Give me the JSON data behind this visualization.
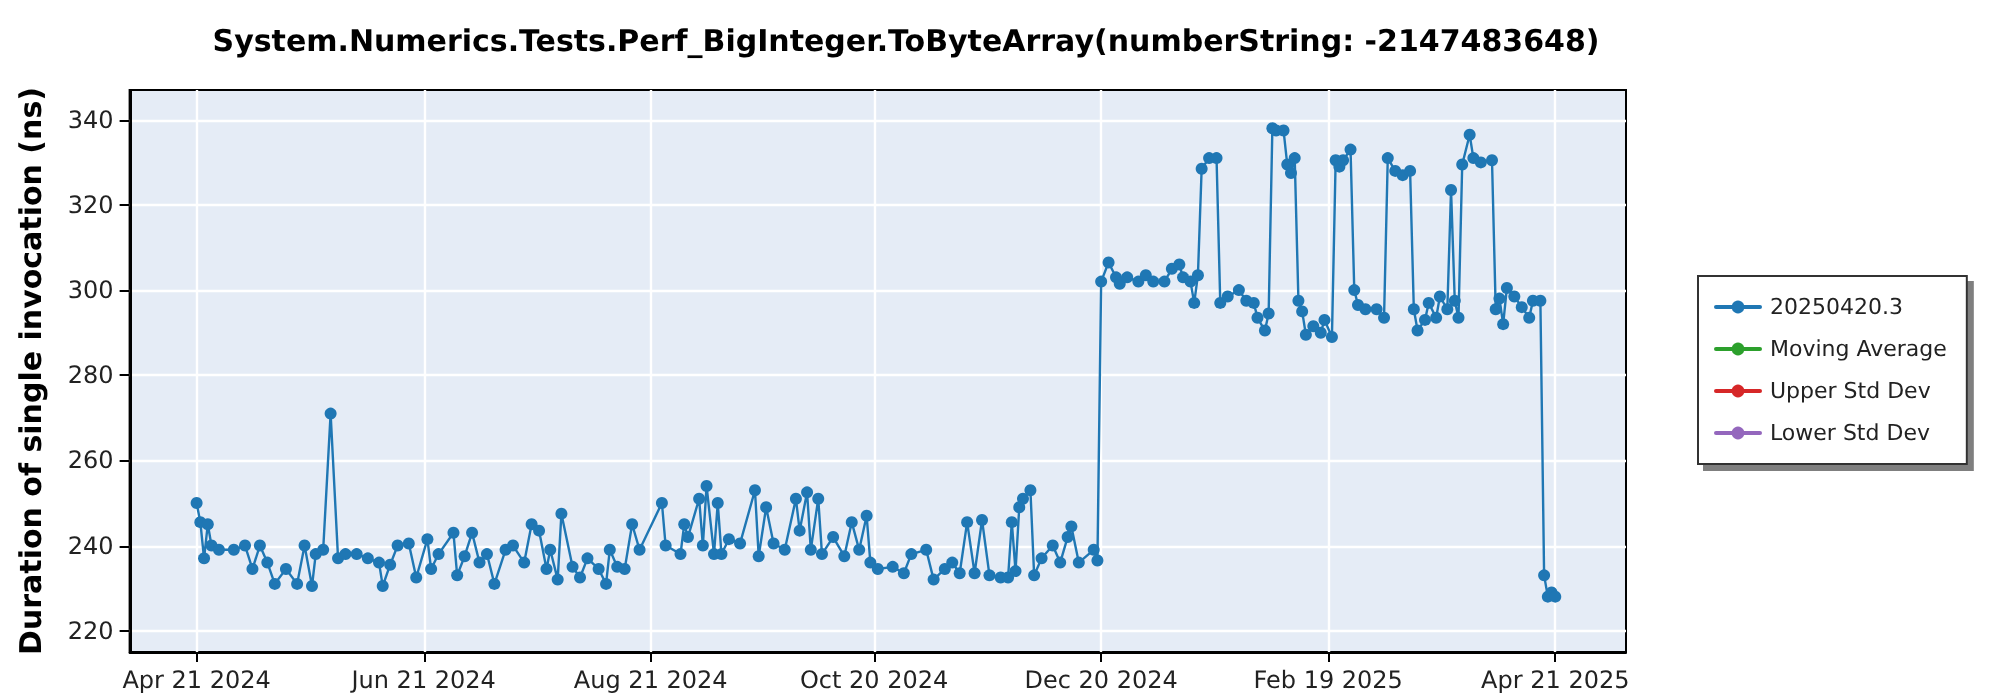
{
  "chart_data": {
    "type": "line",
    "title": "System.Numerics.Tests.Perf_BigInteger.ToByteArray(numberString: -2147483648)",
    "ylabel": "Duration of single invocation (ns)",
    "x": [
      "2024-04-21",
      "2024-04-22",
      "2024-04-23",
      "2024-04-24",
      "2024-04-25",
      "2024-04-27",
      "2024-05-01",
      "2024-05-04",
      "2024-05-06",
      "2024-05-08",
      "2024-05-10",
      "2024-05-12",
      "2024-05-15",
      "2024-05-18",
      "2024-05-20",
      "2024-05-22",
      "2024-05-23",
      "2024-05-25",
      "2024-05-27",
      "2024-05-29",
      "2024-05-31",
      "2024-06-03",
      "2024-06-06",
      "2024-06-09",
      "2024-06-10",
      "2024-06-12",
      "2024-06-14",
      "2024-06-17",
      "2024-06-19",
      "2024-06-22",
      "2024-06-23",
      "2024-06-25",
      "2024-06-29",
      "2024-06-30",
      "2024-07-02",
      "2024-07-04",
      "2024-07-06",
      "2024-07-08",
      "2024-07-10",
      "2024-07-13",
      "2024-07-15",
      "2024-07-18",
      "2024-07-20",
      "2024-07-22",
      "2024-07-24",
      "2024-07-25",
      "2024-07-27",
      "2024-07-28",
      "2024-07-31",
      "2024-08-02",
      "2024-08-04",
      "2024-08-07",
      "2024-08-09",
      "2024-08-10",
      "2024-08-12",
      "2024-08-14",
      "2024-08-16",
      "2024-08-18",
      "2024-08-24",
      "2024-08-25",
      "2024-08-29",
      "2024-08-30",
      "2024-08-31",
      "2024-09-03",
      "2024-09-04",
      "2024-09-05",
      "2024-09-07",
      "2024-09-08",
      "2024-09-09",
      "2024-09-11",
      "2024-09-14",
      "2024-09-18",
      "2024-09-19",
      "2024-09-21",
      "2024-09-23",
      "2024-09-26",
      "2024-09-29",
      "2024-09-30",
      "2024-10-02",
      "2024-10-03",
      "2024-10-05",
      "2024-10-06",
      "2024-10-09",
      "2024-10-12",
      "2024-10-14",
      "2024-10-16",
      "2024-10-18",
      "2024-10-19",
      "2024-10-21",
      "2024-10-25",
      "2024-10-28",
      "2024-10-30",
      "2024-11-03",
      "2024-11-05",
      "2024-11-08",
      "2024-11-10",
      "2024-11-12",
      "2024-11-14",
      "2024-11-16",
      "2024-11-18",
      "2024-11-20",
      "2024-11-23",
      "2024-11-25",
      "2024-11-26",
      "2024-11-27",
      "2024-11-28",
      "2024-11-29",
      "2024-12-01",
      "2024-12-02",
      "2024-12-04",
      "2024-12-07",
      "2024-12-09",
      "2024-12-11",
      "2024-12-12",
      "2024-12-14",
      "2024-12-18",
      "2024-12-19",
      "2024-12-20",
      "2024-12-22",
      "2024-12-24",
      "2024-12-25",
      "2024-12-27",
      "2024-12-30",
      "2025-01-01",
      "2025-01-03",
      "2025-01-06",
      "2025-01-08",
      "2025-01-10",
      "2025-01-11",
      "2025-01-13",
      "2025-01-14",
      "2025-01-15",
      "2025-01-16",
      "2025-01-18",
      "2025-01-20",
      "2025-01-21",
      "2025-01-23",
      "2025-01-26",
      "2025-01-28",
      "2025-01-30",
      "2025-01-31",
      "2025-02-02",
      "2025-02-03",
      "2025-02-04",
      "2025-02-05",
      "2025-02-07",
      "2025-02-08",
      "2025-02-09",
      "2025-02-10",
      "2025-02-11",
      "2025-02-12",
      "2025-02-13",
      "2025-02-15",
      "2025-02-17",
      "2025-02-18",
      "2025-02-20",
      "2025-02-21",
      "2025-02-22",
      "2025-02-23",
      "2025-02-25",
      "2025-02-26",
      "2025-02-27",
      "2025-03-01",
      "2025-03-04",
      "2025-03-06",
      "2025-03-07",
      "2025-03-09",
      "2025-03-11",
      "2025-03-13",
      "2025-03-14",
      "2025-03-15",
      "2025-03-17",
      "2025-03-18",
      "2025-03-20",
      "2025-03-21",
      "2025-03-23",
      "2025-03-24",
      "2025-03-25",
      "2025-03-26",
      "2025-03-27",
      "2025-03-29",
      "2025-03-30",
      "2025-04-01",
      "2025-04-04",
      "2025-04-05",
      "2025-04-06",
      "2025-04-07",
      "2025-04-08",
      "2025-04-10",
      "2025-04-12",
      "2025-04-14",
      "2025-04-15",
      "2025-04-17",
      "2025-04-18",
      "2025-04-19",
      "2025-04-20",
      "2025-04-21"
    ],
    "series": [
      {
        "name": "20250420.3",
        "color": "#1f77b4",
        "values": [
          250,
          245.5,
          237,
          245,
          240,
          239,
          239,
          240,
          234.5,
          240,
          236,
          231,
          234.5,
          231,
          240,
          230.5,
          238,
          239,
          271,
          237,
          238,
          238,
          237,
          236,
          230.5,
          235.5,
          240,
          240.5,
          232.5,
          241.5,
          234.5,
          238,
          243,
          233,
          237.5,
          243,
          236,
          238,
          231,
          239,
          240,
          236,
          245,
          243.5,
          234.5,
          239,
          232,
          247.5,
          235,
          232.5,
          237,
          234.5,
          231,
          239,
          235,
          234.5,
          245,
          239,
          250,
          240,
          238,
          245,
          242,
          251,
          240,
          254,
          238,
          250,
          238,
          241.5,
          240.5,
          253,
          237.5,
          249,
          240.5,
          239,
          251,
          243.5,
          252.5,
          239,
          251,
          238,
          242,
          237.5,
          245.5,
          239,
          247,
          236,
          234.5,
          235,
          233.5,
          238,
          239,
          232,
          234.5,
          236,
          233.5,
          245.5,
          233.5,
          246,
          233,
          232.5,
          232.5,
          245.5,
          234,
          249,
          251,
          253,
          233,
          237,
          240,
          236,
          242,
          244.5,
          236,
          239,
          236.5,
          302,
          306.5,
          303,
          301.5,
          303,
          302,
          303.5,
          302,
          302,
          305,
          306,
          303,
          302,
          297,
          303.5,
          328.5,
          331,
          331,
          297,
          298.5,
          300,
          297.5,
          297,
          293.5,
          290.5,
          294.5,
          338,
          337.5,
          337.5,
          329.5,
          327.5,
          331,
          297.5,
          295,
          289.5,
          291.5,
          290,
          293,
          289,
          330.5,
          329,
          330.5,
          333,
          300,
          296.5,
          295.5,
          295.5,
          293.5,
          331,
          328,
          327,
          328,
          295.5,
          290.5,
          293,
          297,
          293.5,
          298.5,
          295.5,
          323.5,
          297.5,
          293.5,
          329.5,
          336.5,
          331,
          330,
          330.5,
          295.5,
          298,
          292,
          300.5,
          298.5,
          296,
          293.5,
          297.5,
          297.5,
          233,
          228,
          229,
          228
        ]
      },
      {
        "name": "Moving Average",
        "color": "#2ca02c",
        "values": [
          null,
          null,
          null,
          null,
          null,
          null,
          null,
          null,
          null,
          null,
          null,
          null,
          null,
          null,
          null,
          null,
          null,
          null,
          null,
          null,
          null,
          null,
          null,
          null,
          null,
          null,
          null,
          null,
          null,
          null,
          null,
          null,
          null,
          null,
          null,
          null,
          null,
          null,
          null,
          null,
          null,
          null,
          null,
          null,
          null,
          null,
          null,
          null,
          null,
          null,
          null,
          null,
          null,
          null,
          null,
          null,
          null,
          null,
          null,
          null,
          null,
          null,
          null,
          null,
          null,
          null,
          null,
          null,
          null,
          null,
          null,
          null,
          null,
          null,
          null,
          null,
          null,
          null,
          null,
          null,
          null,
          null,
          null,
          null,
          null,
          null,
          null,
          null,
          null,
          null,
          null,
          null,
          null,
          null,
          null,
          null,
          null,
          null,
          null,
          null,
          null,
          null,
          null,
          null,
          null,
          null,
          null,
          null,
          null,
          null,
          null,
          null,
          null,
          null,
          null,
          null,
          null,
          null,
          null,
          null,
          null,
          null,
          null,
          null,
          null,
          null,
          null,
          null,
          null,
          null,
          null,
          null,
          null,
          null,
          null,
          null,
          null,
          null,
          null,
          null,
          null,
          null,
          null,
          null,
          null,
          null,
          null,
          null,
          null,
          null,
          null,
          null,
          null,
          null,
          null,
          null,
          null,
          null,
          null,
          null,
          null,
          null,
          null,
          null,
          null,
          null,
          null,
          null,
          null,
          null,
          null,
          null,
          null,
          null,
          null,
          null,
          null,
          null,
          null,
          null,
          null,
          null,
          null,
          null,
          null,
          null,
          null,
          null,
          null,
          null,
          null,
          null,
          null,
          null,
          null,
          null,
          null
        ]
      },
      {
        "name": "Upper Std Dev",
        "color": "#d62728",
        "values": [
          null,
          null,
          null,
          null,
          null,
          null,
          null,
          null,
          null,
          null,
          null,
          null,
          null,
          null,
          null,
          null,
          null,
          null,
          null,
          null,
          null,
          null,
          null,
          null,
          null,
          null,
          null,
          null,
          null,
          null,
          null,
          null,
          null,
          null,
          null,
          null,
          null,
          null,
          null,
          null,
          null,
          null,
          null,
          null,
          null,
          null,
          null,
          null,
          null,
          null,
          null,
          null,
          null,
          null,
          null,
          null,
          null,
          null,
          null,
          null,
          null,
          null,
          null,
          null,
          null,
          null,
          null,
          null,
          null,
          null,
          null,
          null,
          null,
          null,
          null,
          null,
          null,
          null,
          null,
          null,
          null,
          null,
          null,
          null,
          null,
          null,
          null,
          null,
          null,
          null,
          null,
          null,
          null,
          null,
          null,
          null,
          null,
          null,
          null,
          null,
          null,
          null,
          null,
          null,
          null,
          null,
          null,
          null,
          null,
          null,
          null,
          null,
          null,
          null,
          null,
          null,
          null,
          null,
          null,
          null,
          null,
          null,
          null,
          null,
          null,
          null,
          null,
          null,
          null,
          null,
          null,
          null,
          null,
          null,
          null,
          null,
          null,
          null,
          null,
          null,
          null,
          null,
          null,
          null,
          null,
          null,
          null,
          null,
          null,
          null,
          null,
          null,
          null,
          null,
          null,
          null,
          null,
          null,
          null,
          null,
          null,
          null,
          null,
          null,
          null,
          null,
          null,
          null,
          null,
          null,
          null,
          null,
          null,
          null,
          null,
          null,
          null,
          null,
          null,
          null,
          null,
          null,
          null,
          null,
          null,
          null,
          null,
          null,
          null,
          null,
          null,
          null,
          null,
          null,
          null,
          null,
          null
        ]
      },
      {
        "name": "Lower Std Dev",
        "color": "#9467bd",
        "values": [
          null,
          null,
          null,
          null,
          null,
          null,
          null,
          null,
          null,
          null,
          null,
          null,
          null,
          null,
          null,
          null,
          null,
          null,
          null,
          null,
          null,
          null,
          null,
          null,
          null,
          null,
          null,
          null,
          null,
          null,
          null,
          null,
          null,
          null,
          null,
          null,
          null,
          null,
          null,
          null,
          null,
          null,
          null,
          null,
          null,
          null,
          null,
          null,
          null,
          null,
          null,
          null,
          null,
          null,
          null,
          null,
          null,
          null,
          null,
          null,
          null,
          null,
          null,
          null,
          null,
          null,
          null,
          null,
          null,
          null,
          null,
          null,
          null,
          null,
          null,
          null,
          null,
          null,
          null,
          null,
          null,
          null,
          null,
          null,
          null,
          null,
          null,
          null,
          null,
          null,
          null,
          null,
          null,
          null,
          null,
          null,
          null,
          null,
          null,
          null,
          null,
          null,
          null,
          null,
          null,
          null,
          null,
          null,
          null,
          null,
          null,
          null,
          null,
          null,
          null,
          null,
          null,
          null,
          null,
          null,
          null,
          null,
          null,
          null,
          null,
          null,
          null,
          null,
          null,
          null,
          null,
          null,
          null,
          null,
          null,
          null,
          null,
          null,
          null,
          null,
          null,
          null,
          null,
          null,
          null,
          null,
          null,
          null,
          null,
          null,
          null,
          null,
          null,
          null,
          null,
          null,
          null,
          null,
          null,
          null,
          null,
          null,
          null,
          null,
          null,
          null,
          null,
          null,
          null,
          null,
          null,
          null,
          null,
          null,
          null,
          null,
          null,
          null,
          null,
          null,
          null,
          null,
          null,
          null,
          null,
          null,
          null,
          null,
          null,
          null,
          null,
          null,
          null,
          null,
          null,
          null,
          null
        ]
      }
    ],
    "xlim": [
      "2024-04-03",
      "2025-05-10"
    ],
    "xticks": [
      {
        "value": "2024-04-21",
        "label": "Apr 21 2024"
      },
      {
        "value": "2024-06-21",
        "label": "Jun 21 2024"
      },
      {
        "value": "2024-08-21",
        "label": "Aug 21 2024"
      },
      {
        "value": "2024-10-20",
        "label": "Oct 20 2024"
      },
      {
        "value": "2024-12-20",
        "label": "Dec 20 2024"
      },
      {
        "value": "2025-02-19",
        "label": "Feb 19 2025"
      },
      {
        "value": "2025-04-21",
        "label": "Apr 21 2025"
      }
    ],
    "ylim": [
      215,
      347
    ],
    "yticks": [
      220,
      240,
      260,
      280,
      300,
      320,
      340
    ],
    "grid": true,
    "legend": "right",
    "marker": "circle",
    "line_style": "solid"
  }
}
